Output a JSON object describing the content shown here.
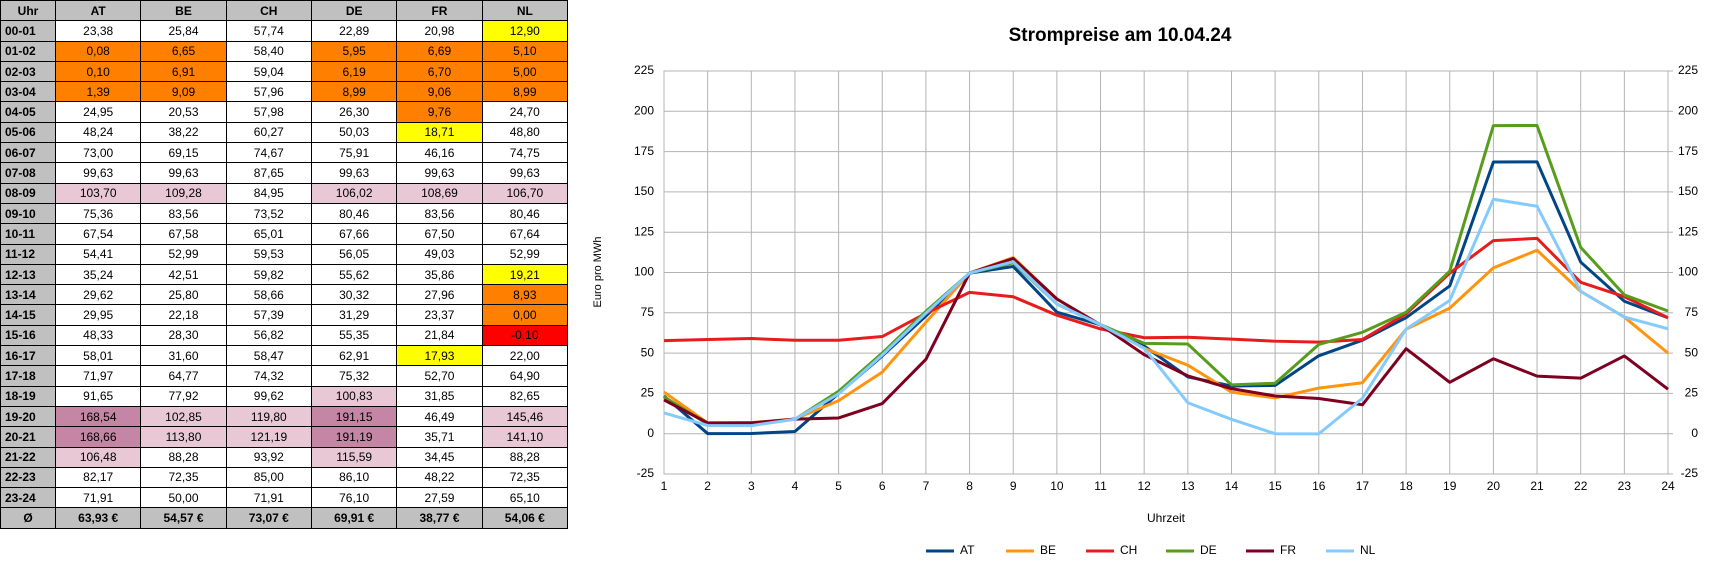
{
  "table": {
    "header": [
      "Uhr",
      "AT",
      "BE",
      "CH",
      "DE",
      "FR",
      "NL"
    ],
    "rows": [
      {
        "label": "00-01",
        "cells": [
          "23,38",
          "25,84",
          "57,74",
          "22,89",
          "20,98",
          "12,90"
        ],
        "fills": [
          "#ffffff",
          "#ffffff",
          "#ffffff",
          "#ffffff",
          "#ffffff",
          "#ffff00"
        ]
      },
      {
        "label": "01-02",
        "cells": [
          "0,08",
          "6,65",
          "58,40",
          "5,95",
          "6,69",
          "5,10"
        ],
        "fills": [
          "#ff8000",
          "#ff8000",
          "#ffffff",
          "#ff8000",
          "#ff8000",
          "#ff8000"
        ]
      },
      {
        "label": "02-03",
        "cells": [
          "0,10",
          "6,91",
          "59,04",
          "6,19",
          "6,70",
          "5,00"
        ],
        "fills": [
          "#ff8000",
          "#ff8000",
          "#ffffff",
          "#ff8000",
          "#ff8000",
          "#ff8000"
        ]
      },
      {
        "label": "03-04",
        "cells": [
          "1,39",
          "9,09",
          "57,96",
          "8,99",
          "9,06",
          "8,99"
        ],
        "fills": [
          "#ff8000",
          "#ff8000",
          "#ffffff",
          "#ff8000",
          "#ff8000",
          "#ff8000"
        ]
      },
      {
        "label": "04-05",
        "cells": [
          "24,95",
          "20,53",
          "57,98",
          "26,30",
          "9,76",
          "24,70"
        ],
        "fills": [
          "#ffffff",
          "#ffffff",
          "#ffffff",
          "#ffffff",
          "#ff8000",
          "#ffffff"
        ]
      },
      {
        "label": "05-06",
        "cells": [
          "48,24",
          "38,22",
          "60,27",
          "50,03",
          "18,71",
          "48,80"
        ],
        "fills": [
          "#ffffff",
          "#ffffff",
          "#ffffff",
          "#ffffff",
          "#ffff00",
          "#ffffff"
        ]
      },
      {
        "label": "06-07",
        "cells": [
          "73,00",
          "69,15",
          "74,67",
          "75,91",
          "46,16",
          "74,75"
        ],
        "fills": [
          "#ffffff",
          "#ffffff",
          "#ffffff",
          "#ffffff",
          "#ffffff",
          "#ffffff"
        ]
      },
      {
        "label": "07-08",
        "cells": [
          "99,63",
          "99,63",
          "87,65",
          "99,63",
          "99,63",
          "99,63"
        ],
        "fills": [
          "#ffffff",
          "#ffffff",
          "#ffffff",
          "#ffffff",
          "#ffffff",
          "#ffffff"
        ]
      },
      {
        "label": "08-09",
        "cells": [
          "103,70",
          "109,28",
          "84,95",
          "106,02",
          "108,69",
          "106,70"
        ],
        "fills": [
          "#e8c8d4",
          "#e8c8d4",
          "#ffffff",
          "#e8c8d4",
          "#e8c8d4",
          "#e8c8d4"
        ]
      },
      {
        "label": "09-10",
        "cells": [
          "75,36",
          "83,56",
          "73,52",
          "80,46",
          "83,56",
          "80,46"
        ],
        "fills": [
          "#ffffff",
          "#ffffff",
          "#ffffff",
          "#ffffff",
          "#ffffff",
          "#ffffff"
        ]
      },
      {
        "label": "10-11",
        "cells": [
          "67,54",
          "67,58",
          "65,01",
          "67,66",
          "67,50",
          "67,64"
        ],
        "fills": [
          "#ffffff",
          "#ffffff",
          "#ffffff",
          "#ffffff",
          "#ffffff",
          "#ffffff"
        ]
      },
      {
        "label": "11-12",
        "cells": [
          "54,41",
          "52,99",
          "59,53",
          "56,05",
          "49,03",
          "52,99"
        ],
        "fills": [
          "#ffffff",
          "#ffffff",
          "#ffffff",
          "#ffffff",
          "#ffffff",
          "#ffffff"
        ]
      },
      {
        "label": "12-13",
        "cells": [
          "35,24",
          "42,51",
          "59,82",
          "55,62",
          "35,86",
          "19,21"
        ],
        "fills": [
          "#ffffff",
          "#ffffff",
          "#ffffff",
          "#ffffff",
          "#ffffff",
          "#ffff00"
        ]
      },
      {
        "label": "13-14",
        "cells": [
          "29,62",
          "25,80",
          "58,66",
          "30,32",
          "27,96",
          "8,93"
        ],
        "fills": [
          "#ffffff",
          "#ffffff",
          "#ffffff",
          "#ffffff",
          "#ffffff",
          "#ff8000"
        ]
      },
      {
        "label": "14-15",
        "cells": [
          "29,95",
          "22,18",
          "57,39",
          "31,29",
          "23,37",
          "0,00"
        ],
        "fills": [
          "#ffffff",
          "#ffffff",
          "#ffffff",
          "#ffffff",
          "#ffffff",
          "#ff8000"
        ]
      },
      {
        "label": "15-16",
        "cells": [
          "48,33",
          "28,30",
          "56,82",
          "55,35",
          "21,84",
          "-0,10"
        ],
        "fills": [
          "#ffffff",
          "#ffffff",
          "#ffffff",
          "#ffffff",
          "#ffffff",
          "#ff0000"
        ]
      },
      {
        "label": "16-17",
        "cells": [
          "58,01",
          "31,60",
          "58,47",
          "62,91",
          "17,93",
          "22,00"
        ],
        "fills": [
          "#ffffff",
          "#ffffff",
          "#ffffff",
          "#ffffff",
          "#ffff00",
          "#ffffff"
        ]
      },
      {
        "label": "17-18",
        "cells": [
          "71,97",
          "64,77",
          "74,32",
          "75,32",
          "52,70",
          "64,90"
        ],
        "fills": [
          "#ffffff",
          "#ffffff",
          "#ffffff",
          "#ffffff",
          "#ffffff",
          "#ffffff"
        ]
      },
      {
        "label": "18-19",
        "cells": [
          "91,65",
          "77,92",
          "99,62",
          "100,83",
          "31,85",
          "82,65"
        ],
        "fills": [
          "#ffffff",
          "#ffffff",
          "#ffffff",
          "#e8c8d4",
          "#ffffff",
          "#ffffff"
        ]
      },
      {
        "label": "19-20",
        "cells": [
          "168,54",
          "102,85",
          "119,80",
          "191,15",
          "46,49",
          "145,46"
        ],
        "fills": [
          "#c486a4",
          "#e8c8d4",
          "#e8c8d4",
          "#c486a4",
          "#ffffff",
          "#e8c8d4"
        ]
      },
      {
        "label": "20-21",
        "cells": [
          "168,66",
          "113,80",
          "121,19",
          "191,19",
          "35,71",
          "141,10"
        ],
        "fills": [
          "#c486a4",
          "#e8c8d4",
          "#e8c8d4",
          "#c486a4",
          "#ffffff",
          "#e8c8d4"
        ]
      },
      {
        "label": "21-22",
        "cells": [
          "106,48",
          "88,28",
          "93,92",
          "115,59",
          "34,45",
          "88,28"
        ],
        "fills": [
          "#e8c8d4",
          "#ffffff",
          "#ffffff",
          "#e8c8d4",
          "#ffffff",
          "#ffffff"
        ]
      },
      {
        "label": "22-23",
        "cells": [
          "82,17",
          "72,35",
          "85,00",
          "86,10",
          "48,22",
          "72,35"
        ],
        "fills": [
          "#ffffff",
          "#ffffff",
          "#ffffff",
          "#ffffff",
          "#ffffff",
          "#ffffff"
        ]
      },
      {
        "label": "23-24",
        "cells": [
          "71,91",
          "50,00",
          "71,91",
          "76,10",
          "27,59",
          "65,10"
        ],
        "fills": [
          "#ffffff",
          "#ffffff",
          "#ffffff",
          "#ffffff",
          "#ffffff",
          "#ffffff"
        ]
      }
    ],
    "footer": {
      "label": "Ø",
      "cells": [
        "63,93 €",
        "54,57 €",
        "73,07 €",
        "69,91 €",
        "38,77 €",
        "54,06 €"
      ]
    }
  },
  "chart_data": {
    "type": "line",
    "title": "Strompreise am 10.04.24",
    "x_label": "Uhrzeit",
    "y_label": "Euro pro MWh",
    "x": [
      1,
      2,
      3,
      4,
      5,
      6,
      7,
      8,
      9,
      10,
      11,
      12,
      13,
      14,
      15,
      16,
      17,
      18,
      19,
      20,
      21,
      22,
      23,
      24
    ],
    "xlim": [
      1,
      24
    ],
    "ylim": [
      -25,
      225
    ],
    "yticks": [
      -25,
      0,
      25,
      50,
      75,
      100,
      125,
      150,
      175,
      200,
      225
    ],
    "y2lim": [
      -25,
      225
    ],
    "y2ticks": [
      -25,
      0,
      25,
      50,
      75,
      100,
      125,
      150,
      175,
      200,
      225
    ],
    "grid": true,
    "legend": "bottom",
    "series": [
      {
        "name": "AT",
        "color": "#004586",
        "values": [
          23.38,
          0.08,
          0.1,
          1.39,
          24.95,
          48.24,
          73.0,
          99.63,
          103.7,
          75.36,
          67.54,
          54.41,
          35.24,
          29.62,
          29.95,
          48.33,
          58.01,
          71.97,
          91.65,
          168.54,
          168.66,
          106.48,
          82.17,
          71.91
        ]
      },
      {
        "name": "BE",
        "color": "#ff950e",
        "values": [
          25.84,
          6.65,
          6.91,
          9.09,
          20.53,
          38.22,
          69.15,
          99.63,
          109.28,
          83.56,
          67.58,
          52.99,
          42.51,
          25.8,
          22.18,
          28.3,
          31.6,
          64.77,
          77.92,
          102.85,
          113.8,
          88.28,
          72.35,
          50.0
        ]
      },
      {
        "name": "CH",
        "color": "#e81c1c",
        "values": [
          57.74,
          58.4,
          59.04,
          57.96,
          57.98,
          60.27,
          74.67,
          87.65,
          84.95,
          73.52,
          65.01,
          59.53,
          59.82,
          58.66,
          57.39,
          56.82,
          58.47,
          74.32,
          99.62,
          119.8,
          121.19,
          93.92,
          85.0,
          71.91
        ]
      },
      {
        "name": "DE",
        "color": "#579d1c",
        "values": [
          22.89,
          5.95,
          6.19,
          8.99,
          26.3,
          50.03,
          75.91,
          99.63,
          106.02,
          80.46,
          67.66,
          56.05,
          55.62,
          30.32,
          31.29,
          55.35,
          62.91,
          75.32,
          100.83,
          191.15,
          191.19,
          115.59,
          86.1,
          76.1
        ]
      },
      {
        "name": "FR",
        "color": "#7e0021",
        "values": [
          20.98,
          6.69,
          6.7,
          9.06,
          9.76,
          18.71,
          46.16,
          99.63,
          108.69,
          83.56,
          67.5,
          49.03,
          35.86,
          27.96,
          23.37,
          21.84,
          17.93,
          52.7,
          31.85,
          46.49,
          35.71,
          34.45,
          48.22,
          27.59
        ]
      },
      {
        "name": "NL",
        "color": "#83caff",
        "values": [
          12.9,
          5.1,
          5.0,
          8.99,
          24.7,
          48.8,
          74.75,
          99.63,
          106.7,
          80.46,
          67.64,
          52.99,
          19.21,
          8.93,
          0.0,
          -0.1,
          22.0,
          64.9,
          82.65,
          145.46,
          141.1,
          88.28,
          72.35,
          65.1
        ]
      }
    ]
  }
}
